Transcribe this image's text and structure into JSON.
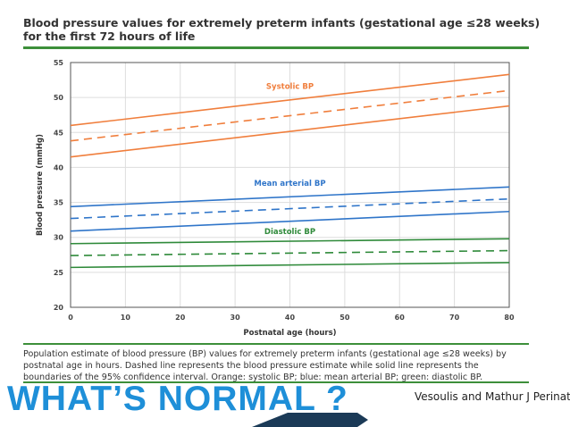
{
  "chart_data": {
    "type": "line",
    "title": "Blood pressure values for extremely preterm infants (gestational age ≤28 weeks) for the first 72 hours of life",
    "xlabel": "Postnatal age (hours)",
    "ylabel": "Blood pressure (mmHg)",
    "xlim": [
      0,
      80
    ],
    "ylim": [
      20,
      55
    ],
    "xticks": [
      0,
      10,
      20,
      30,
      40,
      50,
      60,
      70,
      80
    ],
    "yticks": [
      20,
      25,
      30,
      35,
      40,
      45,
      50,
      55
    ],
    "grid": true,
    "x": [
      0,
      80
    ],
    "series": [
      {
        "name": "Systolic BP upper 95% CI",
        "group": "systolic",
        "style": "solid",
        "values": [
          46.0,
          53.3
        ]
      },
      {
        "name": "Systolic BP estimate",
        "group": "systolic",
        "style": "dashed",
        "values": [
          43.8,
          51.0
        ]
      },
      {
        "name": "Systolic BP lower 95% CI",
        "group": "systolic",
        "style": "solid",
        "values": [
          41.5,
          48.8
        ]
      },
      {
        "name": "Mean arterial BP upper 95% CI",
        "group": "mean",
        "style": "solid",
        "values": [
          34.4,
          37.2
        ]
      },
      {
        "name": "Mean arterial BP estimate",
        "group": "mean",
        "style": "dashed",
        "values": [
          32.7,
          35.5
        ]
      },
      {
        "name": "Mean arterial BP lower 95% CI",
        "group": "mean",
        "style": "solid",
        "values": [
          30.9,
          33.7
        ]
      },
      {
        "name": "Diastolic BP upper 95% CI",
        "group": "diastolic",
        "style": "solid",
        "values": [
          29.1,
          29.8
        ]
      },
      {
        "name": "Diastolic BP estimate",
        "group": "diastolic",
        "style": "dashed",
        "values": [
          27.4,
          28.1
        ]
      },
      {
        "name": "Diastolic BP lower 95% CI",
        "group": "diastolic",
        "style": "solid",
        "values": [
          25.7,
          26.4
        ]
      }
    ],
    "annotations": [
      {
        "text": "Systolic BP",
        "x": 40,
        "y": 51.2,
        "group": "systolic"
      },
      {
        "text": "Mean arterial BP",
        "x": 40,
        "y": 37.4,
        "group": "mean"
      },
      {
        "text": "Diastolic BP",
        "x": 40,
        "y": 30.5,
        "group": "diastolic"
      }
    ],
    "colors": {
      "systolic": "#f07e3c",
      "mean": "#2f75c9",
      "diastolic": "#2f8a3a",
      "grid": "#dddddd",
      "axis": "#555555"
    }
  },
  "caption": "Population estimate of blood pressure (BP) values for extremely preterm infants (gestational age ≤28 weeks) by postnatal age in hours. Dashed line represents the blood pressure estimate while solid line represents the boundaries of the 95% confidence interval. Orange: systolic BP; blue: mean arterial BP; green: diastolic BP.",
  "headline": "WHAT’S NORMAL ?",
  "citation": "Vesoulis and Mathur J Perinatol",
  "colors": {
    "headline": "#1e8fd8",
    "rule": "#3d8f3a"
  }
}
